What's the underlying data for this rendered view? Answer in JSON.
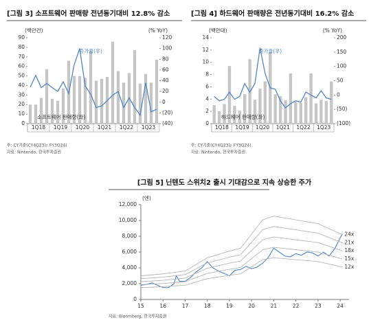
{
  "chart_data": [
    {
      "type": "combo",
      "title": "[그림 3] 소프트웨어 판매량 전년동기대비 12.8% 감소",
      "y_label": "(백만건)",
      "y2_label": "(% YoY)",
      "categories": [
        "1Q18",
        null,
        null,
        null,
        "1Q19",
        null,
        null,
        null,
        "1Q20",
        null,
        null,
        null,
        "1Q21",
        null,
        null,
        null,
        "1Q22",
        null,
        null,
        null,
        "1Q23",
        null,
        null,
        null
      ],
      "series": [
        {
          "name": "소프트웨어 판매량(좌)",
          "type": "bar",
          "color": "#c6c6c6",
          "values": [
            20,
            20,
            27,
            57,
            26,
            24,
            37,
            66,
            50,
            50,
            48,
            76,
            45,
            47,
            49,
            86,
            55,
            43,
            53,
            77,
            42,
            52,
            43,
            67
          ]
        },
        {
          "name": "증가율(우)",
          "type": "line",
          "axis": "y2",
          "color": "#4f86c6",
          "values": [
            28,
            50,
            27,
            35,
            27,
            20,
            38,
            16,
            70,
            100,
            30,
            15,
            -10,
            -7,
            3,
            13,
            20,
            -10,
            8,
            -10,
            -24,
            36,
            -18,
            -13
          ]
        }
      ],
      "ylim": [
        0,
        90
      ],
      "yticks": [
        0,
        10,
        20,
        30,
        40,
        50,
        60,
        70,
        80,
        90
      ],
      "y2lim": [
        -40,
        120
      ],
      "y2ticks": [
        {
          "value": -40,
          "label": "(40)"
        },
        {
          "value": -20,
          "label": "(20)"
        },
        0,
        20,
        40,
        60,
        80,
        100,
        120
      ],
      "notes": [
        "주: CY기준(CY4Q23는 FY3Q24)",
        "자료: Nintendo, 한국투자증권"
      ]
    },
    {
      "type": "combo",
      "title": "[그림 4] 하드웨어 판매량은 전년동기대비 16.2% 감소",
      "y_label": "(백만대)",
      "y2_label": "(% YoY)",
      "categories": [
        "1Q18",
        null,
        null,
        null,
        "1Q19",
        null,
        null,
        null,
        "1Q20",
        null,
        null,
        null,
        "1Q21",
        null,
        null,
        null,
        "1Q22",
        null,
        null,
        null,
        "1Q23",
        null,
        null,
        null
      ],
      "series": [
        {
          "name": "하드웨어 판매량(좌)",
          "type": "bar",
          "color": "#c6c6c6",
          "values": [
            3,
            2,
            3.2,
            9.4,
            2.9,
            2.1,
            4.8,
            10.5,
            3.9,
            5.7,
            6.9,
            11.6,
            4.8,
            4.5,
            3.8,
            8.2,
            3.6,
            3.4,
            4.3,
            8.2,
            3.3,
            3.9,
            3.7,
            6.9
          ]
        },
        {
          "name": "증가율(우)",
          "type": "line",
          "axis": "y2",
          "color": "#4f86c6",
          "values": [
            -5,
            -20,
            -15,
            10,
            -15,
            -5,
            40,
            10,
            40,
            165,
            75,
            25,
            20,
            -20,
            -45,
            -30,
            -20,
            -25,
            10,
            0,
            -10,
            15,
            -10,
            -15
          ]
        }
      ],
      "ylim": [
        0,
        14
      ],
      "yticks": [
        0,
        2,
        4,
        6,
        8,
        10,
        12,
        14
      ],
      "y2lim": [
        -100,
        200
      ],
      "y2ticks": [
        {
          "value": -100,
          "label": "(100)"
        },
        {
          "value": -50,
          "label": "(50)"
        },
        0,
        50,
        100,
        150,
        200
      ],
      "notes": [
        "주: CY기준(CY4Q23는 FY3Q24)",
        "자료: Nintendo, 한국투자증권"
      ]
    },
    {
      "type": "line",
      "title": "[그림 5] 닌텐도 스위치2 출시 기대감으로 지속 상승한 주가",
      "y_label": "(엔)",
      "series": [
        {
          "color": "#4a86c8",
          "x": [
            15,
            15.25,
            15.5,
            15.75,
            16,
            16.25,
            16.5,
            16.6,
            16.75,
            17,
            17.25,
            17.5,
            17.75,
            18,
            18.25,
            18.5,
            18.75,
            19,
            19.25,
            19.5,
            19.75,
            20,
            20.25,
            20.5,
            20.75,
            21,
            21.25,
            21.5,
            21.75,
            22,
            22.25,
            22.5,
            22.75,
            23,
            23.25,
            23.5,
            23.75,
            24,
            24.1
          ],
          "values": [
            1800,
            1900,
            2100,
            1800,
            1500,
            1500,
            2000,
            3000,
            2300,
            2300,
            2800,
            3500,
            4000,
            4800,
            4000,
            3600,
            3300,
            3000,
            3700,
            3800,
            4200,
            3900,
            4100,
            4600,
            5300,
            6500,
            6000,
            5500,
            5400,
            5800,
            5600,
            6000,
            5900,
            5500,
            6000,
            5500,
            6400,
            7800,
            8300
          ]
        },
        {
          "name": "24x",
          "color": "#b5b5b5",
          "x": [
            15,
            16,
            17,
            18,
            19,
            19.5,
            20.5,
            21,
            22,
            23,
            24.1
          ],
          "values": [
            3000,
            3240,
            3600,
            5280,
            6120,
            6480,
            10080,
            10560,
            10080,
            9600,
            8208
          ]
        },
        {
          "name": "21x",
          "color": "#b5b5b5",
          "x": [
            15,
            16,
            17,
            18,
            19,
            19.5,
            20.5,
            21,
            22,
            23,
            24.1
          ],
          "values": [
            2625,
            2835,
            3150,
            4620,
            5355,
            5670,
            8820,
            9240,
            8820,
            8400,
            7182
          ]
        },
        {
          "name": "18x",
          "color": "#b5b5b5",
          "x": [
            15,
            16,
            17,
            18,
            19,
            19.5,
            20.5,
            21,
            22,
            23,
            24.1
          ],
          "values": [
            2250,
            2430,
            2700,
            3960,
            4590,
            4860,
            7560,
            7920,
            7560,
            7200,
            6156
          ]
        },
        {
          "name": "15x",
          "color": "#b5b5b5",
          "x": [
            15,
            16,
            17,
            18,
            19,
            19.5,
            20.5,
            21,
            22,
            23,
            24.1
          ],
          "values": [
            1875,
            2025,
            2250,
            3300,
            3825,
            4050,
            6300,
            6600,
            6300,
            6000,
            5130
          ]
        },
        {
          "name": "12x",
          "color": "#b5b5b5",
          "x": [
            15,
            16,
            17,
            18,
            19,
            19.5,
            20.5,
            21,
            22,
            23,
            24.1
          ],
          "values": [
            1500,
            1620,
            1800,
            2640,
            3060,
            3240,
            5040,
            5280,
            5040,
            4800,
            4104
          ]
        }
      ],
      "xlim": [
        15,
        24.4
      ],
      "xticks": [
        15,
        16,
        17,
        18,
        19,
        20,
        21,
        22,
        23,
        24
      ],
      "ylim": [
        0,
        12000
      ],
      "yticks": [
        0,
        {
          "value": 2000,
          "label": "2,000"
        },
        {
          "value": 4000,
          "label": "4,000"
        },
        {
          "value": 6000,
          "label": "6,000"
        },
        {
          "value": 8000,
          "label": "8,000"
        },
        {
          "value": 10000,
          "label": "10,000"
        },
        {
          "value": 12000,
          "label": "12,000"
        }
      ],
      "notes": [
        "자료: Bloomberg, 한국투자증권"
      ]
    }
  ]
}
